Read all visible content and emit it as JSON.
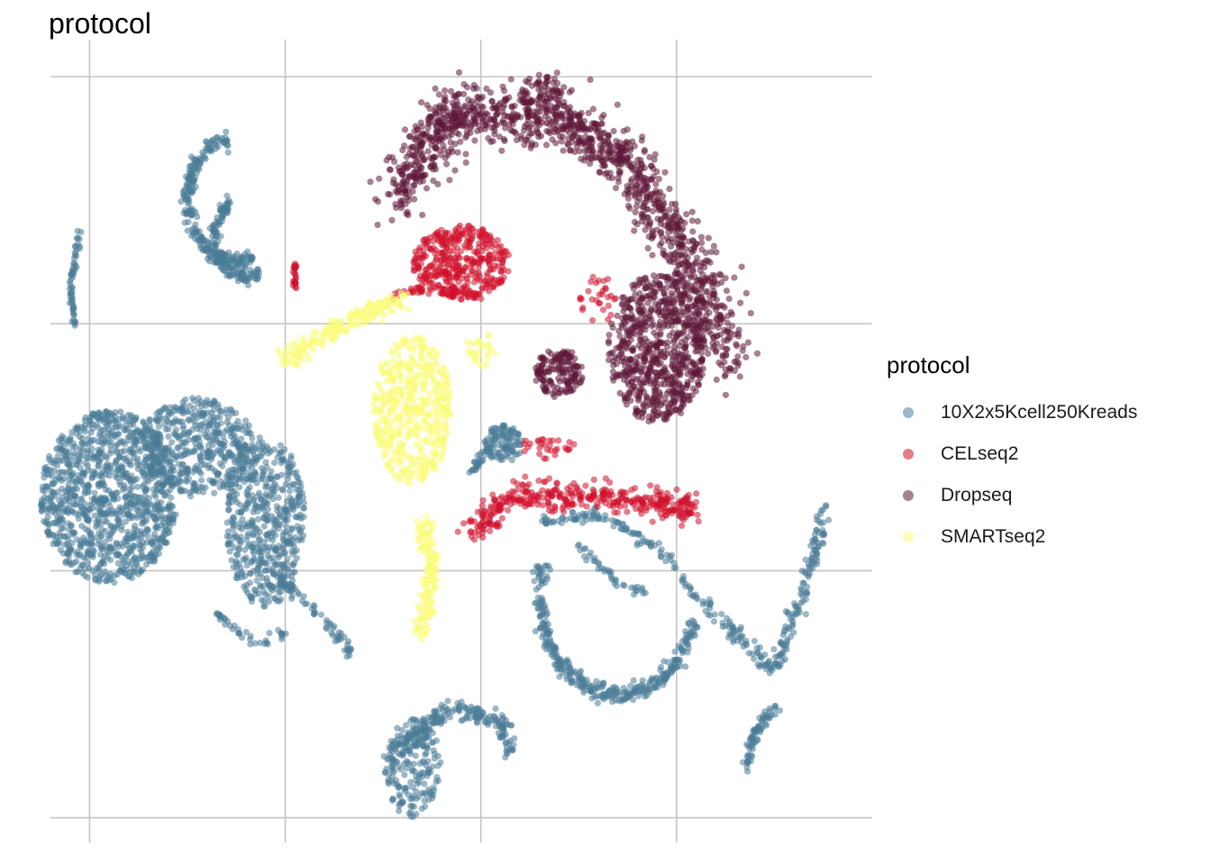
{
  "title": "protocol",
  "legend": {
    "title": "protocol",
    "items": [
      {
        "label": "10X2x5Kcell250Kreads",
        "color": "#4b7b98"
      },
      {
        "label": "CELseq2",
        "color": "#d0112b"
      },
      {
        "label": "Dropseq",
        "color": "#5e1838"
      },
      {
        "label": "SMARTseq2",
        "color": "#fafb7a"
      }
    ]
  },
  "chart_data": {
    "type": "scatter",
    "title": "protocol",
    "xlabel": "",
    "ylabel": "",
    "x_tick_labels": [],
    "y_tick_labels": [],
    "grid": true,
    "legend_position": "right",
    "series": [
      {
        "name": "10X2x5Kcell250Kreads",
        "color": "#4b7b98",
        "clusters": [
          {
            "shape": "arc",
            "cx": -25,
            "cy": 20,
            "r": 5,
            "a0": 100,
            "a1": 290,
            "width": 0.6,
            "n": 260
          },
          {
            "shape": "arc",
            "cx": -24,
            "cy": 17,
            "r": 3.2,
            "a0": 120,
            "a1": 300,
            "width": 0.5,
            "n": 140
          },
          {
            "shape": "curve",
            "pts": [
              [
                -41,
                17.5
              ],
              [
                -42,
                13
              ],
              [
                -41.5,
                10
              ]
            ],
            "width": 0.25,
            "n": 60
          },
          {
            "shape": "blob",
            "cx": -38,
            "cy": -4,
            "rx": 7,
            "ry": 7,
            "n": 1100
          },
          {
            "shape": "blob",
            "cx": -29,
            "cy": 0,
            "rx": 6,
            "ry": 4,
            "n": 450
          },
          {
            "shape": "blob",
            "cx": -22,
            "cy": -6,
            "rx": 4,
            "ry": 7,
            "n": 500
          },
          {
            "shape": "curve",
            "pts": [
              [
                -23,
                -9
              ],
              [
                -16,
                -14
              ],
              [
                -13,
                -17
              ]
            ],
            "width": 0.6,
            "n": 90
          },
          {
            "shape": "curve",
            "pts": [
              [
                -27,
                -13.5
              ],
              [
                -23,
                -16
              ],
              [
                -20,
                -15
              ]
            ],
            "width": 0.5,
            "n": 40
          },
          {
            "shape": "blob",
            "cx": 2.3,
            "cy": 0.3,
            "rx": 2,
            "ry": 1.5,
            "n": 110
          },
          {
            "shape": "curve",
            "pts": [
              [
                -1,
                -2
              ],
              [
                0,
                -1
              ],
              [
                1,
                0
              ]
            ],
            "width": 0.4,
            "n": 30
          },
          {
            "shape": "arc",
            "cx": 14,
            "cy": -12,
            "r": 8,
            "a0": 160,
            "a1": 345,
            "width": 0.7,
            "n": 350
          },
          {
            "shape": "curve",
            "pts": [
              [
                6,
                -6
              ],
              [
                12,
                -5.5
              ],
              [
                18,
                -8
              ],
              [
                22,
                -12
              ]
            ],
            "width": 0.5,
            "n": 110
          },
          {
            "shape": "curve",
            "pts": [
              [
                10,
                -8
              ],
              [
                14,
                -11
              ],
              [
                17,
                -12
              ]
            ],
            "width": 0.4,
            "n": 40
          },
          {
            "shape": "curve",
            "pts": [
              [
                23,
                -13
              ],
              [
                30,
                -18
              ],
              [
                34,
                -9
              ],
              [
                35,
                -5
              ]
            ],
            "width": 0.8,
            "n": 200
          },
          {
            "shape": "curve",
            "pts": [
              [
                27,
                -26
              ],
              [
                28,
                -23
              ],
              [
                30,
                -21
              ]
            ],
            "width": 0.5,
            "n": 70
          },
          {
            "shape": "blob",
            "cx": -7,
            "cy": -26,
            "rx": 3,
            "ry": 4,
            "n": 200
          },
          {
            "shape": "curve",
            "pts": [
              [
                -8,
                -24
              ],
              [
                -3,
                -21
              ],
              [
                2,
                -22
              ],
              [
                3,
                -25
              ]
            ],
            "width": 0.8,
            "n": 180
          }
        ]
      },
      {
        "name": "CELseq2",
        "color": "#d0112b",
        "clusters": [
          {
            "shape": "blob",
            "cx": -2,
            "cy": 15,
            "rx": 5,
            "ry": 3,
            "n": 380
          },
          {
            "shape": "curve",
            "pts": [
              [
                -1,
                -7
              ],
              [
                3,
                -4
              ],
              [
                12,
                -4
              ],
              [
                22,
                -5
              ]
            ],
            "width": 1.2,
            "n": 380
          },
          {
            "shape": "curve",
            "pts": [
              [
                -10,
                12
              ],
              [
                -5,
                13
              ],
              [
                0,
                12
              ]
            ],
            "width": 0.5,
            "n": 50
          },
          {
            "shape": "curve",
            "pts": [
              [
                -19,
                15
              ],
              [
                -19,
                13
              ]
            ],
            "width": 0.25,
            "n": 25
          },
          {
            "shape": "blob",
            "cx": 12,
            "cy": 12,
            "rx": 2,
            "ry": 2,
            "n": 30
          },
          {
            "shape": "blob",
            "cx": 7,
            "cy": 0,
            "rx": 3,
            "ry": 1,
            "n": 30
          }
        ]
      },
      {
        "name": "Dropseq",
        "color": "#5e1838",
        "clusters": [
          {
            "shape": "curve",
            "pts": [
              [
                -9,
                20
              ],
              [
                -3,
                27
              ],
              [
                8,
                27
              ],
              [
                16,
                22
              ],
              [
                22,
                14
              ],
              [
                26,
                7
              ]
            ],
            "width": 2.6,
            "n": 1300
          },
          {
            "shape": "blob",
            "cx": 18,
            "cy": 8,
            "rx": 5,
            "ry": 6,
            "n": 700
          },
          {
            "shape": "blob",
            "cx": 8,
            "cy": 6,
            "rx": 2.5,
            "ry": 2,
            "n": 150
          },
          {
            "shape": "blob",
            "cx": 7,
            "cy": 29,
            "rx": 1.5,
            "ry": 1,
            "n": 30
          }
        ]
      },
      {
        "name": "SMARTseq2",
        "color": "#fafb7a",
        "clusters": [
          {
            "shape": "blob",
            "cx": -7,
            "cy": 3,
            "rx": 4,
            "ry": 6,
            "n": 520
          },
          {
            "shape": "curve",
            "pts": [
              [
                -20,
                7
              ],
              [
                -14,
                10
              ],
              [
                -8,
                12
              ]
            ],
            "width": 1.0,
            "n": 200
          },
          {
            "shape": "curve",
            "pts": [
              [
                -6,
                -6
              ],
              [
                -5,
                -10
              ],
              [
                -6,
                -15
              ]
            ],
            "width": 1.0,
            "n": 160
          },
          {
            "shape": "blob",
            "cx": 0,
            "cy": 8,
            "rx": 1.5,
            "ry": 1.5,
            "n": 30
          }
        ]
      }
    ],
    "xlim": [
      -44,
      40
    ],
    "ylim": [
      -32,
      33
    ]
  }
}
